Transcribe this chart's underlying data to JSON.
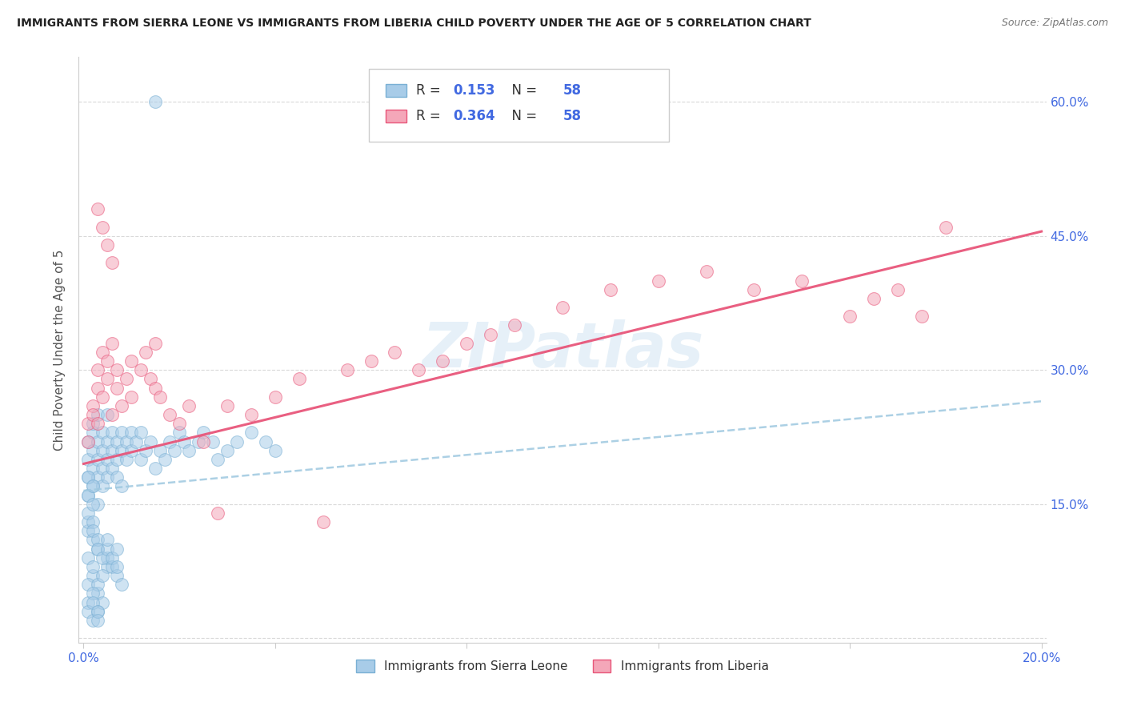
{
  "title": "IMMIGRANTS FROM SIERRA LEONE VS IMMIGRANTS FROM LIBERIA CHILD POVERTY UNDER THE AGE OF 5 CORRELATION CHART",
  "source": "Source: ZipAtlas.com",
  "ylabel": "Child Poverty Under the Age of 5",
  "legend_label1": "Immigrants from Sierra Leone",
  "legend_label2": "Immigrants from Liberia",
  "R1": "0.153",
  "N1": "58",
  "R2": "0.364",
  "N2": "58",
  "xlim": [
    0.0,
    0.2
  ],
  "ylim": [
    0.0,
    0.65
  ],
  "color_blue": "#a8cce8",
  "color_pink": "#f4a7b9",
  "color_blue_line": "#7ab0d4",
  "color_pink_line": "#e8567a",
  "watermark": "ZIPatlas",
  "watermark_color": "#c6dbef",
  "tick_color": "#4169E1",
  "sl_x": [
    0.001,
    0.001,
    0.001,
    0.001,
    0.002,
    0.002,
    0.002,
    0.002,
    0.002,
    0.003,
    0.003,
    0.003,
    0.003,
    0.003,
    0.004,
    0.004,
    0.004,
    0.004,
    0.005,
    0.005,
    0.005,
    0.005,
    0.006,
    0.006,
    0.006,
    0.007,
    0.007,
    0.007,
    0.008,
    0.008,
    0.008,
    0.009,
    0.009,
    0.01,
    0.01,
    0.011,
    0.012,
    0.012,
    0.013,
    0.014,
    0.015,
    0.016,
    0.017,
    0.018,
    0.019,
    0.02,
    0.021,
    0.022,
    0.024,
    0.025,
    0.027,
    0.028,
    0.03,
    0.032,
    0.035,
    0.038,
    0.04,
    0.015
  ],
  "sl_y": [
    0.2,
    0.22,
    0.18,
    0.16,
    0.21,
    0.23,
    0.19,
    0.17,
    0.24,
    0.2,
    0.22,
    0.18,
    0.25,
    0.15,
    0.21,
    0.19,
    0.23,
    0.17,
    0.22,
    0.2,
    0.18,
    0.25,
    0.21,
    0.19,
    0.23,
    0.2,
    0.22,
    0.18,
    0.21,
    0.23,
    0.17,
    0.22,
    0.2,
    0.21,
    0.23,
    0.22,
    0.2,
    0.23,
    0.21,
    0.22,
    0.19,
    0.21,
    0.2,
    0.22,
    0.21,
    0.23,
    0.22,
    0.21,
    0.22,
    0.23,
    0.22,
    0.2,
    0.21,
    0.22,
    0.23,
    0.22,
    0.21,
    0.6
  ],
  "sl_extra_x": [
    0.003,
    0.005,
    0.003,
    0.002,
    0.001,
    0.001,
    0.002,
    0.003,
    0.004,
    0.005,
    0.006,
    0.007,
    0.008,
    0.001,
    0.002,
    0.003,
    0.004,
    0.001,
    0.002,
    0.001,
    0.001,
    0.002,
    0.002,
    0.003,
    0.003,
    0.004,
    0.005,
    0.005,
    0.006,
    0.007,
    0.007,
    0.001,
    0.002,
    0.002,
    0.003,
    0.003,
    0.001,
    0.002,
    0.001,
    0.002
  ],
  "sl_extra_y": [
    0.1,
    0.08,
    0.05,
    0.07,
    0.09,
    0.06,
    0.08,
    0.06,
    0.07,
    0.09,
    0.08,
    0.07,
    0.06,
    0.04,
    0.05,
    0.03,
    0.04,
    0.12,
    0.11,
    0.13,
    0.14,
    0.13,
    0.12,
    0.11,
    0.1,
    0.09,
    0.1,
    0.11,
    0.09,
    0.1,
    0.08,
    0.03,
    0.02,
    0.04,
    0.03,
    0.02,
    0.16,
    0.15,
    0.18,
    0.17
  ],
  "lib_x": [
    0.001,
    0.001,
    0.002,
    0.002,
    0.003,
    0.003,
    0.003,
    0.004,
    0.004,
    0.005,
    0.005,
    0.006,
    0.006,
    0.007,
    0.007,
    0.008,
    0.009,
    0.01,
    0.01,
    0.012,
    0.013,
    0.014,
    0.015,
    0.015,
    0.016,
    0.018,
    0.02,
    0.022,
    0.025,
    0.028,
    0.03,
    0.035,
    0.04,
    0.045,
    0.05,
    0.055,
    0.06,
    0.065,
    0.07,
    0.075,
    0.08,
    0.085,
    0.09,
    0.1,
    0.11,
    0.12,
    0.13,
    0.14,
    0.15,
    0.16,
    0.165,
    0.17,
    0.175,
    0.18,
    0.003,
    0.004,
    0.005,
    0.006
  ],
  "lib_y": [
    0.22,
    0.24,
    0.26,
    0.25,
    0.28,
    0.3,
    0.24,
    0.27,
    0.32,
    0.29,
    0.31,
    0.33,
    0.25,
    0.3,
    0.28,
    0.26,
    0.29,
    0.27,
    0.31,
    0.3,
    0.32,
    0.29,
    0.28,
    0.33,
    0.27,
    0.25,
    0.24,
    0.26,
    0.22,
    0.14,
    0.26,
    0.25,
    0.27,
    0.29,
    0.13,
    0.3,
    0.31,
    0.32,
    0.3,
    0.31,
    0.33,
    0.34,
    0.35,
    0.37,
    0.39,
    0.4,
    0.41,
    0.39,
    0.4,
    0.36,
    0.38,
    0.39,
    0.36,
    0.46,
    0.48,
    0.46,
    0.44,
    0.42
  ],
  "sl_line_x0": 0.0,
  "sl_line_x1": 0.2,
  "sl_line_y0": 0.165,
  "sl_line_y1": 0.265,
  "lib_line_x0": 0.0,
  "lib_line_x1": 0.2,
  "lib_line_y0": 0.195,
  "lib_line_y1": 0.455
}
